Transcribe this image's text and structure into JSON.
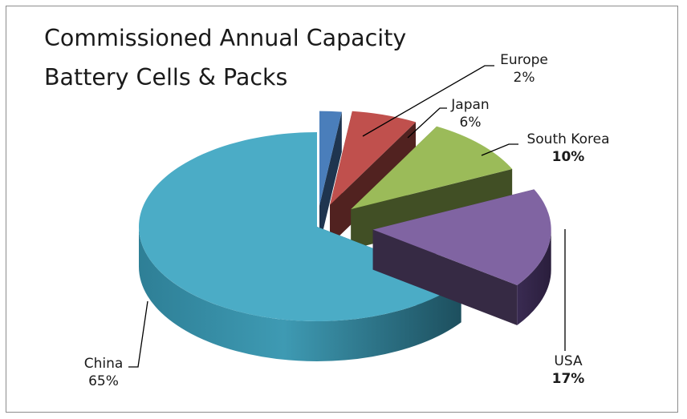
{
  "chart_data": {
    "type": "pie",
    "title_lines": [
      "Commissioned Annual Capacity",
      "Battery Cells & Packs"
    ],
    "slices": [
      {
        "label": "Europe",
        "percent_label": "2%",
        "value": 2,
        "color": "#4a7ebb",
        "bold_percent": false
      },
      {
        "label": "Japan",
        "percent_label": "6%",
        "value": 6,
        "color": "#c0504d",
        "bold_percent": false
      },
      {
        "label": "South Korea",
        "percent_label": "10%",
        "value": 10,
        "color": "#9bbb59",
        "bold_percent": true
      },
      {
        "label": "USA",
        "percent_label": "17%",
        "value": 17,
        "color": "#8064a2",
        "bold_percent": true
      },
      {
        "label": "China",
        "percent_label": "65%",
        "value": 65,
        "color": "#4bacc6",
        "bold_percent": false
      }
    ],
    "legend": "none",
    "three_d": true
  }
}
